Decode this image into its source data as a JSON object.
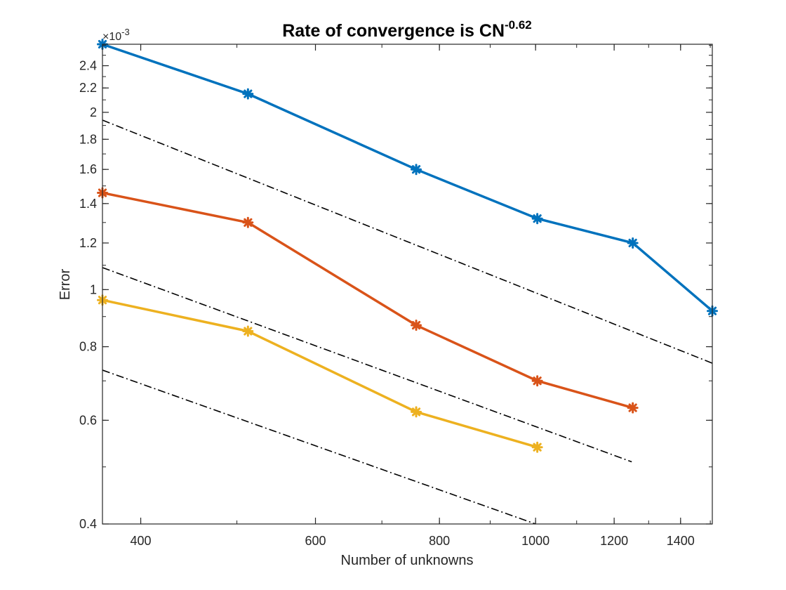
{
  "chart_data": {
    "type": "line",
    "title": {
      "base": "Rate of convergence is CN",
      "exponent": "-0.62"
    },
    "xlabel": "Number of unknowns",
    "ylabel": "Error",
    "xscale": "log",
    "yscale": "log",
    "xlim": [
      366,
      1507
    ],
    "ylim": [
      0.0004,
      0.00261
    ],
    "x_ticks": [
      400,
      600,
      800,
      1000,
      1200,
      1400
    ],
    "x_tick_labels": [
      "400",
      "600",
      "800",
      "1000",
      "1200",
      "1400"
    ],
    "y_ticks": [
      0.0004,
      0.0006,
      0.0008,
      0.001,
      0.0012,
      0.0014,
      0.0016,
      0.0018,
      0.002,
      0.0022,
      0.0024
    ],
    "y_tick_labels": [
      "0.4",
      "0.6",
      "0.8",
      "1",
      "1.2",
      "1.4",
      "1.6",
      "1.8",
      "2",
      "2.2",
      "2.4"
    ],
    "y_exponent_label": "×10",
    "y_exponent_power": "-3",
    "grid": false,
    "box": true,
    "series": [
      {
        "name": "series-1",
        "color": "#0072BD",
        "marker": "asterisk",
        "x": [
          366,
          513,
          758,
          1004,
          1253,
          1507
        ],
        "y": [
          0.00261,
          0.00215,
          0.0016,
          0.00132,
          0.0012,
          0.00092
        ]
      },
      {
        "name": "series-2",
        "color": "#D95319",
        "marker": "asterisk",
        "x": [
          366,
          513,
          758,
          1004,
          1253
        ],
        "y": [
          0.00146,
          0.0013,
          0.00087,
          0.0007,
          0.00063
        ]
      },
      {
        "name": "series-3",
        "color": "#EDB120",
        "marker": "asterisk",
        "x": [
          366,
          513,
          758,
          1004
        ],
        "y": [
          0.00096,
          0.00085,
          0.00062,
          0.00054
        ]
      }
    ],
    "reference_lines": [
      {
        "name": "reference-line-1",
        "style": "dash-dot",
        "color": "#000000",
        "x": [
          366,
          1507
        ],
        "y": [
          0.00194,
          0.00075
        ]
      },
      {
        "name": "reference-line-2",
        "style": "dash-dot",
        "color": "#000000",
        "x": [
          366,
          1250
        ],
        "y": [
          0.00109,
          0.00051
        ]
      },
      {
        "name": "reference-line-3",
        "style": "dash-dot",
        "color": "#000000",
        "x": [
          366,
          1000
        ],
        "y": [
          0.00073,
          0.0004
        ]
      }
    ]
  }
}
